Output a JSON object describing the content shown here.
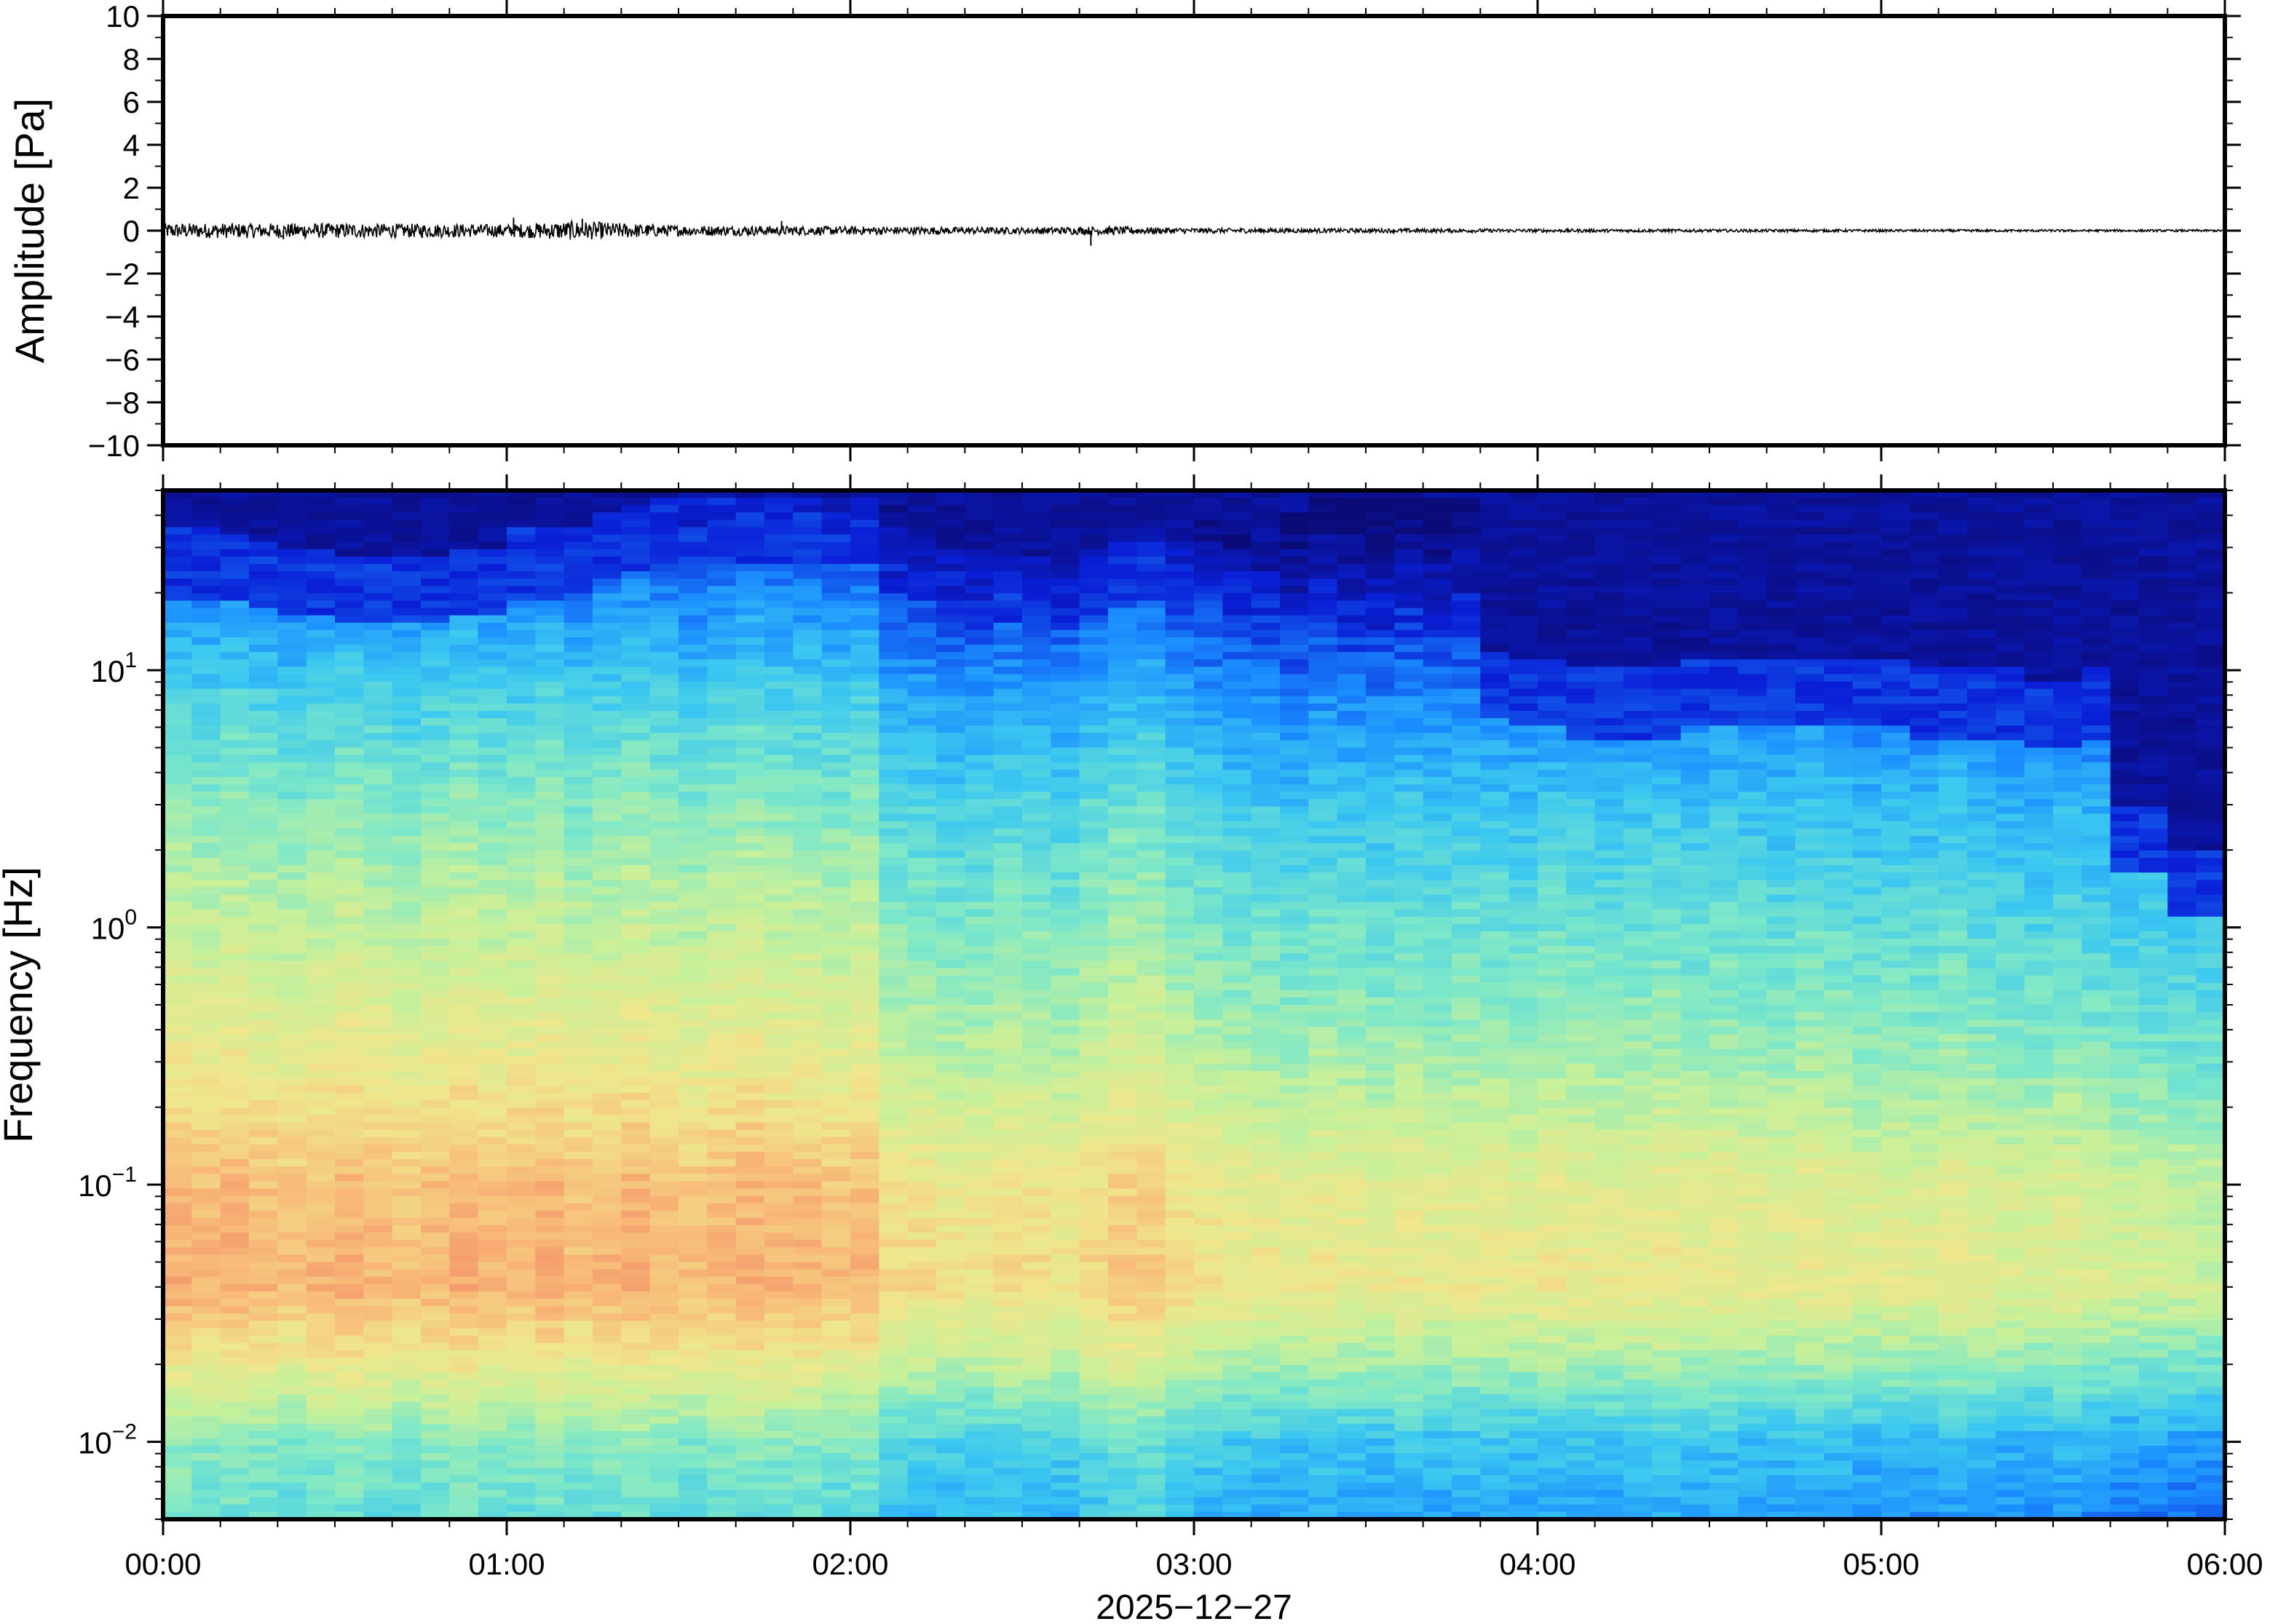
{
  "chart_data": [
    {
      "type": "line",
      "panel": "waveform",
      "ylabel": "Amplitude [Pa]",
      "ylim": [
        -10,
        10
      ],
      "yticks": [
        10,
        8,
        6,
        4,
        2,
        0,
        -2,
        -4,
        -6,
        -8,
        -10
      ],
      "ytick_labels": [
        "10",
        "8",
        "6",
        "4",
        "2",
        "0",
        "−2",
        "−4",
        "−6",
        "−8",
        "−10"
      ],
      "xlim_hours": [
        0,
        6
      ],
      "line_color": "#000000",
      "envelope": [
        {
          "t": 0.0,
          "a": 0.35
        },
        {
          "t": 0.5,
          "a": 0.35
        },
        {
          "t": 1.0,
          "a": 0.3
        },
        {
          "t": 1.2,
          "a": 0.45
        },
        {
          "t": 1.5,
          "a": 0.25
        },
        {
          "t": 2.0,
          "a": 0.2
        },
        {
          "t": 2.5,
          "a": 0.15
        },
        {
          "t": 2.75,
          "a": 0.2
        },
        {
          "t": 3.0,
          "a": 0.12
        },
        {
          "t": 3.5,
          "a": 0.1
        },
        {
          "t": 4.0,
          "a": 0.08
        },
        {
          "t": 5.0,
          "a": 0.06
        },
        {
          "t": 6.0,
          "a": 0.05
        }
      ],
      "spikes": [
        {
          "t": 1.02,
          "a": 0.6
        },
        {
          "t": 1.22,
          "a": 0.55
        },
        {
          "t": 1.8,
          "a": 0.45
        },
        {
          "t": 2.7,
          "a": -0.7
        },
        {
          "t": 0.35,
          "a": -0.4
        }
      ]
    },
    {
      "type": "heatmap",
      "panel": "spectrogram",
      "ylabel": "Frequency [Hz]",
      "yscale": "log",
      "ylim": [
        0.005,
        50
      ],
      "yticks": [
        0.01,
        0.1,
        1,
        10
      ],
      "ytick_labels": [
        {
          "base": "10",
          "exp": "−2"
        },
        {
          "base": "10",
          "exp": "−1"
        },
        {
          "base": "10",
          "exp": "0"
        },
        {
          "base": "10",
          "exp": "1"
        }
      ],
      "xlim_hours": [
        0,
        6
      ],
      "colormap": [
        "#0b0b78",
        "#0a1fd6",
        "#1a8cff",
        "#3cc8f0",
        "#7ee8c8",
        "#c8f09a",
        "#f0e68c",
        "#f8b878",
        "#f08060"
      ],
      "columns": 72,
      "cutoff_freq_hz": [
        35,
        35,
        33,
        32,
        30,
        30,
        28,
        28,
        28,
        28,
        30,
        30,
        35,
        35,
        36,
        40,
        45,
        48,
        48,
        48,
        48,
        48,
        48,
        48,
        48,
        45,
        35,
        30,
        30,
        28,
        28,
        28,
        30,
        32,
        35,
        38,
        38,
        38,
        38,
        40,
        48,
        48,
        48,
        48,
        48,
        48,
        12,
        11,
        11,
        10,
        10,
        10,
        10,
        11,
        11,
        11,
        11,
        11,
        11,
        11,
        11,
        10,
        10,
        10,
        10,
        9,
        9,
        10,
        3,
        3,
        2,
        2
      ],
      "intensity_profile": [
        {
          "f": 50,
          "v": 0.0
        },
        {
          "f": 20,
          "v": 0.15
        },
        {
          "f": 8,
          "v": 0.3
        },
        {
          "f": 3,
          "v": 0.42
        },
        {
          "f": 1,
          "v": 0.52
        },
        {
          "f": 0.3,
          "v": 0.62
        },
        {
          "f": 0.1,
          "v": 0.75
        },
        {
          "f": 0.04,
          "v": 0.78
        },
        {
          "f": 0.02,
          "v": 0.62
        },
        {
          "f": 0.01,
          "v": 0.42
        },
        {
          "f": 0.005,
          "v": 0.35
        }
      ],
      "column_level": [
        0.12,
        0.1,
        0.12,
        0.1,
        0.08,
        0.1,
        0.12,
        0.1,
        0.08,
        0.1,
        0.12,
        0.1,
        0.1,
        0.12,
        0.08,
        0.1,
        0.12,
        0.1,
        0.08,
        0.1,
        0.12,
        0.1,
        0.1,
        0.08,
        0.1,
        0.0,
        0.0,
        -0.02,
        -0.02,
        0.0,
        0.0,
        -0.02,
        0.02,
        0.05,
        0.05,
        0.0,
        -0.02,
        -0.04,
        -0.04,
        -0.06,
        -0.04,
        -0.05,
        -0.06,
        -0.04,
        -0.06,
        -0.05,
        -0.05,
        -0.06,
        -0.04,
        -0.05,
        -0.06,
        -0.05,
        -0.04,
        -0.06,
        -0.05,
        -0.06,
        -0.07,
        -0.05,
        -0.06,
        -0.08,
        -0.07,
        -0.08,
        -0.06,
        -0.08,
        -0.09,
        -0.1,
        -0.08,
        -0.1,
        -0.12,
        -0.12,
        -0.13,
        -0.14
      ]
    }
  ],
  "xaxis": {
    "ticks": [
      "00:00",
      "01:00",
      "02:00",
      "03:00",
      "04:00",
      "05:00",
      "06:00"
    ],
    "date": "2025−12−27"
  }
}
